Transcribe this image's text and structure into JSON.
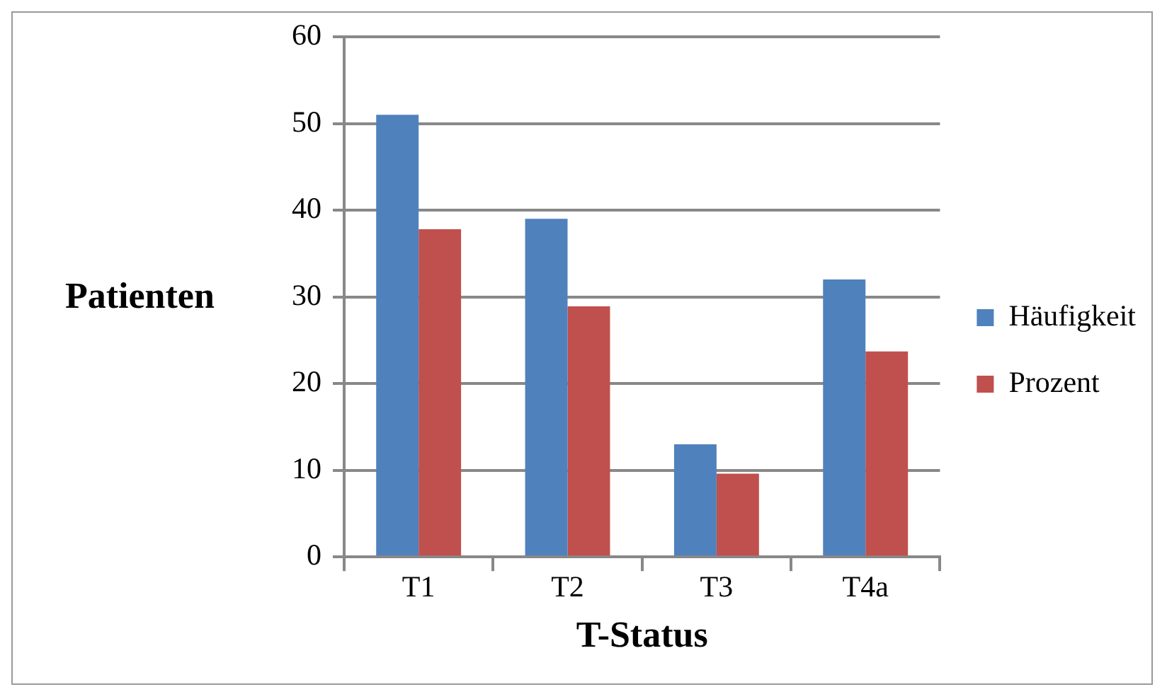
{
  "chart_data": {
    "type": "bar",
    "xlabel": "T-Status",
    "ylabel": "Patienten",
    "categories": [
      "T1",
      "T2",
      "T3",
      "T4a"
    ],
    "series": [
      {
        "name": "Häufigkeit",
        "color": "#4f81bd",
        "values": [
          51,
          39,
          13,
          32
        ]
      },
      {
        "name": "Prozent",
        "color": "#c0504d",
        "values": [
          37.8,
          28.9,
          9.6,
          23.7
        ]
      }
    ],
    "ylim": [
      0,
      60
    ],
    "yticks": [
      0,
      10,
      20,
      30,
      40,
      50,
      60
    ],
    "grid": "y",
    "legend": "right"
  }
}
